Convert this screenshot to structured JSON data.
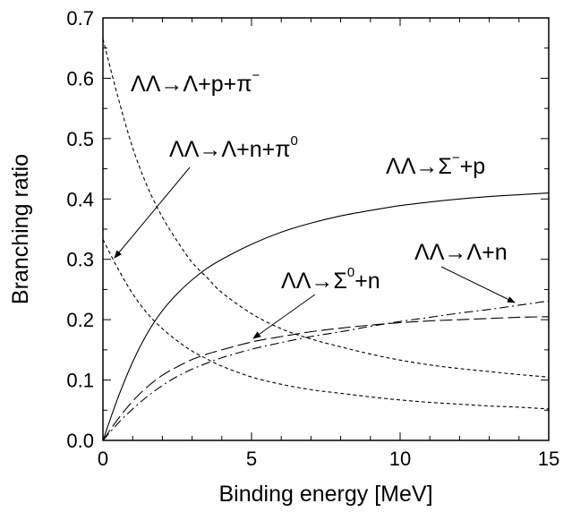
{
  "chart_data": {
    "type": "line",
    "title": "",
    "xlabel": "Binding energy [MeV]",
    "ylabel": "Branching ratio",
    "xlim": [
      0,
      15
    ],
    "ylim": [
      0.0,
      0.7
    ],
    "xticks": [
      "0",
      "5",
      "10",
      "15"
    ],
    "yticks": [
      "0.0",
      "0.1",
      "0.2",
      "0.3",
      "0.4",
      "0.5",
      "0.6",
      "0.7"
    ],
    "grid": false,
    "legend": "none",
    "x": [
      0,
      0.5,
      1,
      1.5,
      2,
      2.5,
      3,
      3.5,
      4,
      5,
      6,
      7,
      8,
      9,
      10,
      11,
      12,
      13,
      14,
      15
    ],
    "series": [
      {
        "name": "ΛΛ→Λ+p+π⁻",
        "style": "dashed",
        "values": [
          0.665,
          0.57,
          0.485,
          0.42,
          0.37,
          0.33,
          0.295,
          0.27,
          0.245,
          0.21,
          0.185,
          0.168,
          0.155,
          0.143,
          0.133,
          0.125,
          0.119,
          0.114,
          0.109,
          0.105
        ]
      },
      {
        "name": "ΛΛ→Λ+n+π⁰",
        "style": "dashed",
        "values": [
          0.333,
          0.285,
          0.243,
          0.21,
          0.185,
          0.165,
          0.148,
          0.135,
          0.123,
          0.105,
          0.093,
          0.084,
          0.078,
          0.072,
          0.067,
          0.063,
          0.06,
          0.057,
          0.055,
          0.052
        ]
      },
      {
        "name": "ΛΛ→Σ⁻+p",
        "style": "solid",
        "values": [
          0.0,
          0.07,
          0.13,
          0.178,
          0.215,
          0.243,
          0.266,
          0.285,
          0.3,
          0.325,
          0.345,
          0.36,
          0.372,
          0.381,
          0.389,
          0.395,
          0.4,
          0.404,
          0.407,
          0.41
        ]
      },
      {
        "name": "ΛΛ→Σ⁰+n",
        "style": "long-dash",
        "values": [
          0.0,
          0.035,
          0.065,
          0.089,
          0.108,
          0.122,
          0.134,
          0.143,
          0.15,
          0.163,
          0.172,
          0.18,
          0.186,
          0.191,
          0.195,
          0.198,
          0.2,
          0.202,
          0.204,
          0.205
        ]
      },
      {
        "name": "ΛΛ→Λ+n",
        "style": "dash-dot",
        "values": [
          0.0,
          0.028,
          0.052,
          0.073,
          0.091,
          0.106,
          0.118,
          0.128,
          0.137,
          0.151,
          0.162,
          0.172,
          0.18,
          0.189,
          0.197,
          0.204,
          0.211,
          0.217,
          0.224,
          0.231
        ]
      }
    ],
    "annotations": [
      {
        "label": "ΛΛ→Λ+p+π",
        "superscript": "−"
      },
      {
        "label": "ΛΛ→Λ+n+π",
        "superscript": "0"
      },
      {
        "label": "ΛΛ→Σ",
        "superscript": "−",
        "suffix": "+p"
      },
      {
        "label": "ΛΛ→Σ",
        "superscript": "0",
        "suffix": "+n"
      },
      {
        "label": "ΛΛ→Λ+n",
        "superscript": "",
        "suffix": ""
      }
    ]
  }
}
